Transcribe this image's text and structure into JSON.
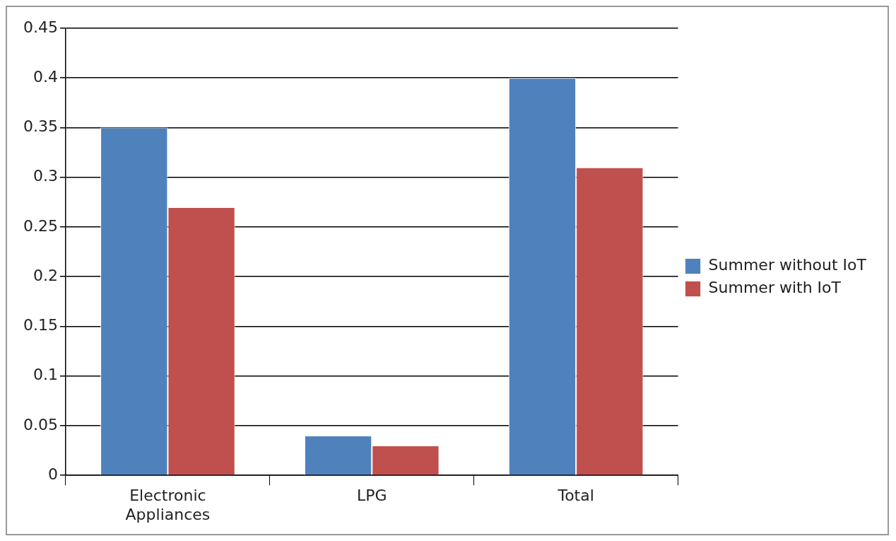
{
  "chart_data": {
    "type": "bar",
    "categories": [
      "Electronic Appliances",
      "LPG",
      "Total"
    ],
    "series": [
      {
        "name": "Summer without IoT",
        "color": "#4f81bd",
        "values": [
          0.35,
          0.04,
          0.4
        ]
      },
      {
        "name": "Summer with IoT",
        "color": "#c0504d",
        "values": [
          0.27,
          0.03,
          0.31
        ]
      }
    ],
    "ylim": [
      0,
      0.45
    ],
    "yticks": [
      0,
      0.05,
      0.1,
      0.15,
      0.2,
      0.25,
      0.3,
      0.35,
      0.4,
      0.45
    ],
    "grid": "y",
    "legend": "right"
  }
}
